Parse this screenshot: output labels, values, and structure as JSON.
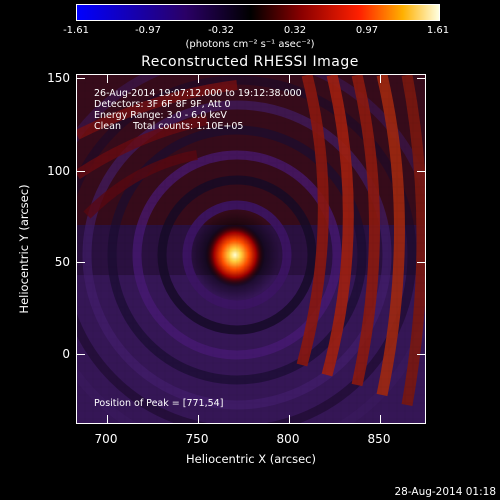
{
  "colorbar": {
    "ticks": [
      "-1.61",
      "-0.97",
      "-0.32",
      "0.32",
      "0.97",
      "1.61"
    ],
    "units": "(photons cm⁻² s⁻¹ asec⁻²)"
  },
  "title": "Reconstructed RHESSI Image",
  "annotations": {
    "time": "26-Aug-2014 19:07:12.000 to 19:12:38.000",
    "detectors": "Detectors: 3F 6F 8F 9F, Att 0",
    "energy": "Energy Range: 3.0 - 6.0 keV",
    "algorithm": "Clean    Total counts: 1.10E+05",
    "peak": "Position of Peak = [771,54]"
  },
  "axes": {
    "xlabel": "Heliocentric X (arcsec)",
    "ylabel": "Heliocentric Y (arcsec)",
    "xticks": [
      "700",
      "750",
      "800",
      "850"
    ],
    "yticks": [
      "150",
      "100",
      "50",
      "0"
    ]
  },
  "footer": "28-Aug-2014 01:18"
}
